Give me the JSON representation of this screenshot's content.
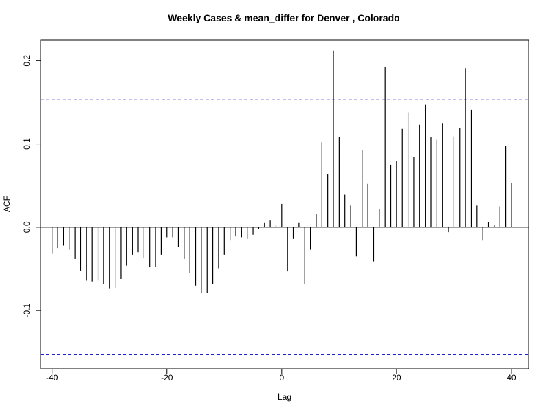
{
  "chart_data": {
    "type": "bar",
    "title": "Weekly Cases & mean_differ for Denver , Colorado",
    "xlabel": "Lag",
    "ylabel": "ACF",
    "xlim": [
      -42,
      43
    ],
    "ylim": [
      -0.17,
      0.225
    ],
    "xticks": [
      -40,
      -20,
      0,
      20,
      40
    ],
    "xtick_labels": [
      "-40",
      "-20",
      "0",
      "20",
      "40"
    ],
    "yticks": [
      -0.1,
      0.0,
      0.1,
      0.2
    ],
    "ytick_labels": [
      "-0.1",
      "0.0",
      "0.1",
      "0.2"
    ],
    "confidence_bound": 0.153,
    "confidence_color": "#0000CC",
    "bar_color": "#000000",
    "x": [
      -40,
      -39,
      -38,
      -37,
      -36,
      -35,
      -34,
      -33,
      -32,
      -31,
      -30,
      -29,
      -28,
      -27,
      -26,
      -25,
      -24,
      -23,
      -22,
      -21,
      -20,
      -19,
      -18,
      -17,
      -16,
      -15,
      -14,
      -13,
      -12,
      -11,
      -10,
      -9,
      -8,
      -7,
      -6,
      -5,
      -4,
      -3,
      -2,
      -1,
      0,
      1,
      2,
      3,
      4,
      5,
      6,
      7,
      8,
      9,
      10,
      11,
      12,
      13,
      14,
      15,
      16,
      17,
      18,
      19,
      20,
      21,
      22,
      23,
      24,
      25,
      26,
      27,
      28,
      29,
      30,
      31,
      32,
      33,
      34,
      35,
      36,
      37,
      38,
      39,
      40
    ],
    "values": [
      -0.032,
      -0.025,
      -0.022,
      -0.027,
      -0.038,
      -0.052,
      -0.064,
      -0.065,
      -0.064,
      -0.068,
      -0.074,
      -0.073,
      -0.062,
      -0.046,
      -0.033,
      -0.03,
      -0.037,
      -0.048,
      -0.048,
      -0.033,
      -0.012,
      -0.012,
      -0.024,
      -0.038,
      -0.055,
      -0.07,
      -0.079,
      -0.079,
      -0.068,
      -0.05,
      -0.033,
      -0.016,
      -0.011,
      -0.012,
      -0.014,
      -0.009,
      -0.002,
      0.005,
      0.008,
      0.003,
      0.028,
      -0.053,
      -0.014,
      0.005,
      -0.068,
      -0.027,
      0.016,
      0.102,
      0.064,
      0.212,
      0.108,
      0.039,
      0.026,
      -0.035,
      0.093,
      0.052,
      -0.041,
      0.022,
      0.192,
      0.075,
      0.079,
      0.118,
      0.138,
      0.084,
      0.123,
      0.147,
      0.108,
      0.105,
      0.125,
      -0.006,
      0.109,
      0.119,
      0.191,
      0.141,
      0.026,
      -0.016,
      0.006,
      0.003,
      0.025,
      0.098,
      0.053
    ]
  }
}
